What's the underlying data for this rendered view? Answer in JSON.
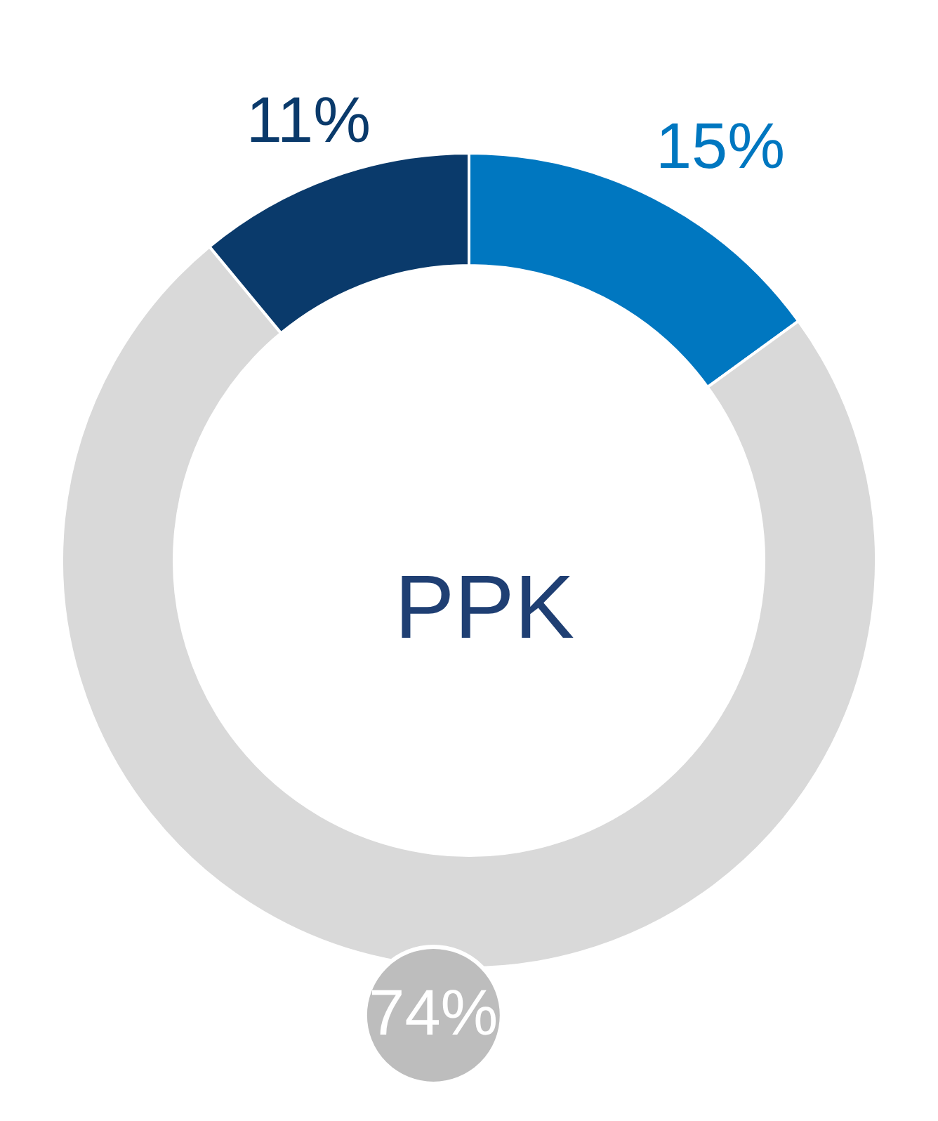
{
  "chart_data": {
    "type": "donut",
    "title": "PPK",
    "categories": [
      null,
      null,
      null
    ],
    "values": [
      15,
      74,
      11
    ],
    "colors": [
      "#0077c0",
      "#d9d9d9",
      "#0a3a6b"
    ],
    "value_labels": [
      "15%",
      "74%",
      "11%"
    ]
  }
}
